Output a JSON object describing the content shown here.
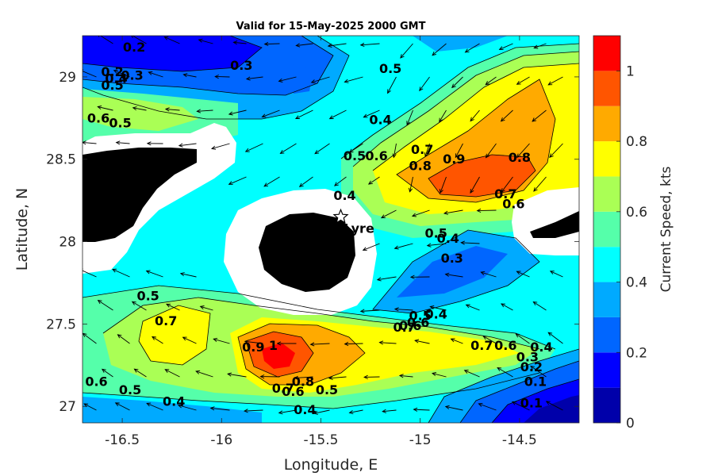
{
  "chart_data": {
    "type": "heatmap",
    "title": "Valid for 15-May-2025 2000 GMT",
    "xlabel": "Longitude, E",
    "ylabel": "Latitude, N",
    "xlim": [
      -16.7,
      -14.2
    ],
    "ylim": [
      26.9,
      29.25
    ],
    "x_ticks": [
      -16.5,
      -16,
      -15.5,
      -15,
      -14.5
    ],
    "x_tick_labels": [
      "-16.5",
      "-16",
      "-15.5",
      "-15",
      "-14.5"
    ],
    "y_ticks": [
      27,
      27.5,
      28,
      28.5,
      29
    ],
    "y_tick_labels": [
      "27",
      "27.5",
      "28",
      "28.5",
      "29"
    ],
    "colorbar": {
      "label": "Current Speed, kts",
      "range": [
        0,
        1.1
      ],
      "ticks": [
        0,
        0.2,
        0.4,
        0.6,
        0.8,
        1
      ],
      "tick_labels": [
        "0",
        "0.2",
        "0.4",
        "0.6",
        "0.8",
        "1"
      ],
      "levels": [
        0,
        0.1,
        0.2,
        0.3,
        0.4,
        0.5,
        0.6,
        0.7,
        0.8,
        0.9,
        1.0,
        1.1
      ],
      "colors": [
        "#0000aa",
        "#0000ff",
        "#0066ff",
        "#00aaff",
        "#00ffff",
        "#55ffaa",
        "#aaff55",
        "#ffff00",
        "#ffaa00",
        "#ff5500",
        "#ff0000"
      ]
    },
    "station": {
      "name": "Lyre",
      "lon": -15.4,
      "lat": 28.15
    },
    "contour_labels": [
      {
        "text": "0.2",
        "lon": -16.44,
        "lat": 29.18
      },
      {
        "text": "0.3",
        "lon": -15.9,
        "lat": 29.07
      },
      {
        "text": "0.5",
        "lon": -15.15,
        "lat": 29.05
      },
      {
        "text": "0.2",
        "lon": -16.55,
        "lat": 29.03
      },
      {
        "text": "0.3",
        "lon": -16.45,
        "lat": 29.01
      },
      {
        "text": "0.4",
        "lon": -16.53,
        "lat": 28.99
      },
      {
        "text": "0.5",
        "lon": -16.55,
        "lat": 28.95
      },
      {
        "text": "0.6",
        "lon": -16.62,
        "lat": 28.75
      },
      {
        "text": "0.5",
        "lon": -16.51,
        "lat": 28.72
      },
      {
        "text": "0.4",
        "lon": -15.2,
        "lat": 28.74
      },
      {
        "text": "0.5",
        "lon": -15.33,
        "lat": 28.52
      },
      {
        "text": "0.6",
        "lon": -15.22,
        "lat": 28.52
      },
      {
        "text": "0.7",
        "lon": -14.99,
        "lat": 28.56
      },
      {
        "text": "0.8",
        "lon": -15.0,
        "lat": 28.46
      },
      {
        "text": "0.9",
        "lon": -14.83,
        "lat": 28.5
      },
      {
        "text": "0.8",
        "lon": -14.5,
        "lat": 28.51
      },
      {
        "text": "0.4",
        "lon": -15.38,
        "lat": 28.28
      },
      {
        "text": "0.7",
        "lon": -14.57,
        "lat": 28.29
      },
      {
        "text": "0.6",
        "lon": -14.53,
        "lat": 28.23
      },
      {
        "text": "0.5",
        "lon": -14.92,
        "lat": 28.05
      },
      {
        "text": "0.4",
        "lon": -14.86,
        "lat": 28.02
      },
      {
        "text": "0.3",
        "lon": -14.84,
        "lat": 27.9
      },
      {
        "text": "0.5",
        "lon": -16.37,
        "lat": 27.67
      },
      {
        "text": "0.7",
        "lon": -16.28,
        "lat": 27.52
      },
      {
        "text": "0.6",
        "lon": -15.01,
        "lat": 27.51
      },
      {
        "text": "0.4",
        "lon": -14.92,
        "lat": 27.56
      },
      {
        "text": "0.5",
        "lon": -15.0,
        "lat": 27.55
      },
      {
        "text": "0.7",
        "lon": -15.08,
        "lat": 27.48
      },
      {
        "text": "0.6",
        "lon": -15.05,
        "lat": 27.49
      },
      {
        "text": "0.9",
        "lon": -15.84,
        "lat": 27.36
      },
      {
        "text": "1",
        "lon": -15.74,
        "lat": 27.37
      },
      {
        "text": "0.7",
        "lon": -14.69,
        "lat": 27.37
      },
      {
        "text": "0.6",
        "lon": -14.57,
        "lat": 27.37
      },
      {
        "text": "0.4",
        "lon": -14.39,
        "lat": 27.36
      },
      {
        "text": "0.3",
        "lon": -14.46,
        "lat": 27.3
      },
      {
        "text": "0.2",
        "lon": -14.44,
        "lat": 27.24
      },
      {
        "text": "0.1",
        "lon": -14.42,
        "lat": 27.15
      },
      {
        "text": "0.8",
        "lon": -15.59,
        "lat": 27.15
      },
      {
        "text": "0.7",
        "lon": -15.69,
        "lat": 27.11
      },
      {
        "text": "0.6",
        "lon": -15.64,
        "lat": 27.09
      },
      {
        "text": "0.5",
        "lon": -15.47,
        "lat": 27.1
      },
      {
        "text": "0.4",
        "lon": -15.58,
        "lat": 26.98
      },
      {
        "text": "0.6",
        "lon": -16.63,
        "lat": 27.15
      },
      {
        "text": "0.5",
        "lon": -16.46,
        "lat": 27.1
      },
      {
        "text": "0.4",
        "lon": -16.24,
        "lat": 27.03
      },
      {
        "text": "0.1",
        "lon": -14.44,
        "lat": 27.02
      }
    ]
  }
}
